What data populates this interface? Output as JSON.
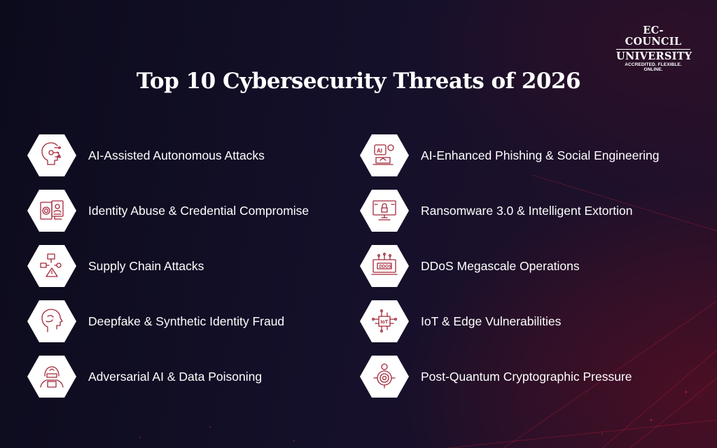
{
  "logo": {
    "line1": "EC-COUNCIL",
    "line2": "UNIVERSITY",
    "tagline": "ACCREDITED. FLEXIBLE. ONLINE."
  },
  "title": "Top 10 Cybersecurity Threats of 2026",
  "colors": {
    "accent": "#a3283a",
    "hexagon": "#ffffff",
    "text": "#ffffff",
    "background": "#14102a"
  },
  "left_items": [
    {
      "label": "AI-Assisted Autonomous Attacks",
      "icon": "ai-head-circuit-icon"
    },
    {
      "label": "Identity Abuse & Credential Compromise",
      "icon": "id-card-fingerprint-icon"
    },
    {
      "label": "Supply Chain Attacks",
      "icon": "supply-chain-warning-icon"
    },
    {
      "label": "Deepfake & Synthetic Identity Fraud",
      "icon": "face-profile-icon"
    },
    {
      "label": "Adversarial AI & Data Poisoning",
      "icon": "hacker-icon"
    }
  ],
  "right_items": [
    {
      "label": "AI-Enhanced Phishing & Social Engineering",
      "icon": "ai-phishing-icon"
    },
    {
      "label": "Ransomware 3.0 & Intelligent Extortion",
      "icon": "monitor-lock-icon"
    },
    {
      "label": "DDoS Megascale Operations",
      "icon": "ddos-monitor-icon",
      "icon_text": "DDOS"
    },
    {
      "label": "IoT & Edge Vulnerabilities",
      "icon": "iot-chip-icon",
      "icon_text": "IoT"
    },
    {
      "label": "Post-Quantum Cryptographic Pressure",
      "icon": "fingerprint-bitcoin-icon"
    }
  ]
}
